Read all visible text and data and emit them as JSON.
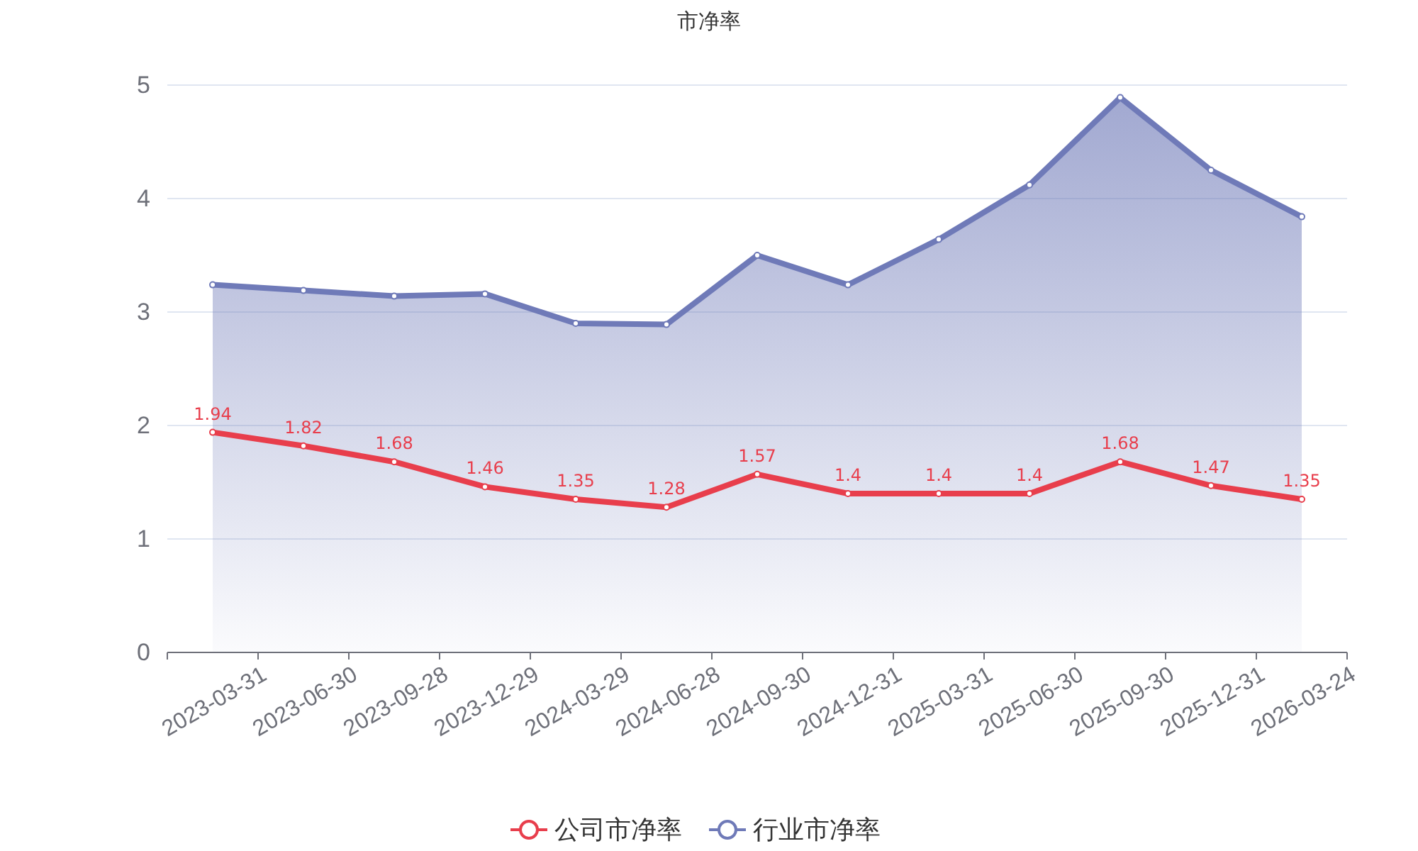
{
  "chart_data": {
    "type": "line",
    "title": "市净率",
    "categories": [
      "2023-03-31",
      "2023-06-30",
      "2023-09-28",
      "2023-12-29",
      "2024-03-29",
      "2024-06-28",
      "2024-09-30",
      "2024-12-31",
      "2025-03-31",
      "2025-06-30",
      "2025-09-30",
      "2025-12-31",
      "2026-03-24"
    ],
    "series": [
      {
        "name": "公司市净率",
        "color": "#e83e4c",
        "values": [
          1.94,
          1.82,
          1.68,
          1.46,
          1.35,
          1.28,
          1.57,
          1.4,
          1.4,
          1.4,
          1.68,
          1.47,
          1.35
        ],
        "value_labels": [
          "1.94",
          "1.82",
          "1.68",
          "1.46",
          "1.35",
          "1.28",
          "1.57",
          "1.4",
          "1.4",
          "1.4",
          "1.68",
          "1.47",
          "1.35"
        ]
      },
      {
        "name": "行业市净率",
        "color": "#6f7ab8",
        "type": "area",
        "values": [
          3.24,
          3.19,
          3.14,
          3.16,
          2.9,
          2.89,
          3.5,
          3.24,
          3.64,
          4.12,
          4.89,
          4.25,
          3.84
        ]
      }
    ],
    "ylim": [
      0,
      5
    ],
    "yticks": [
      0,
      1,
      2,
      3,
      4,
      5
    ],
    "grid": "y",
    "legend": "bottom",
    "marker": "circle",
    "line_style": "solid"
  }
}
